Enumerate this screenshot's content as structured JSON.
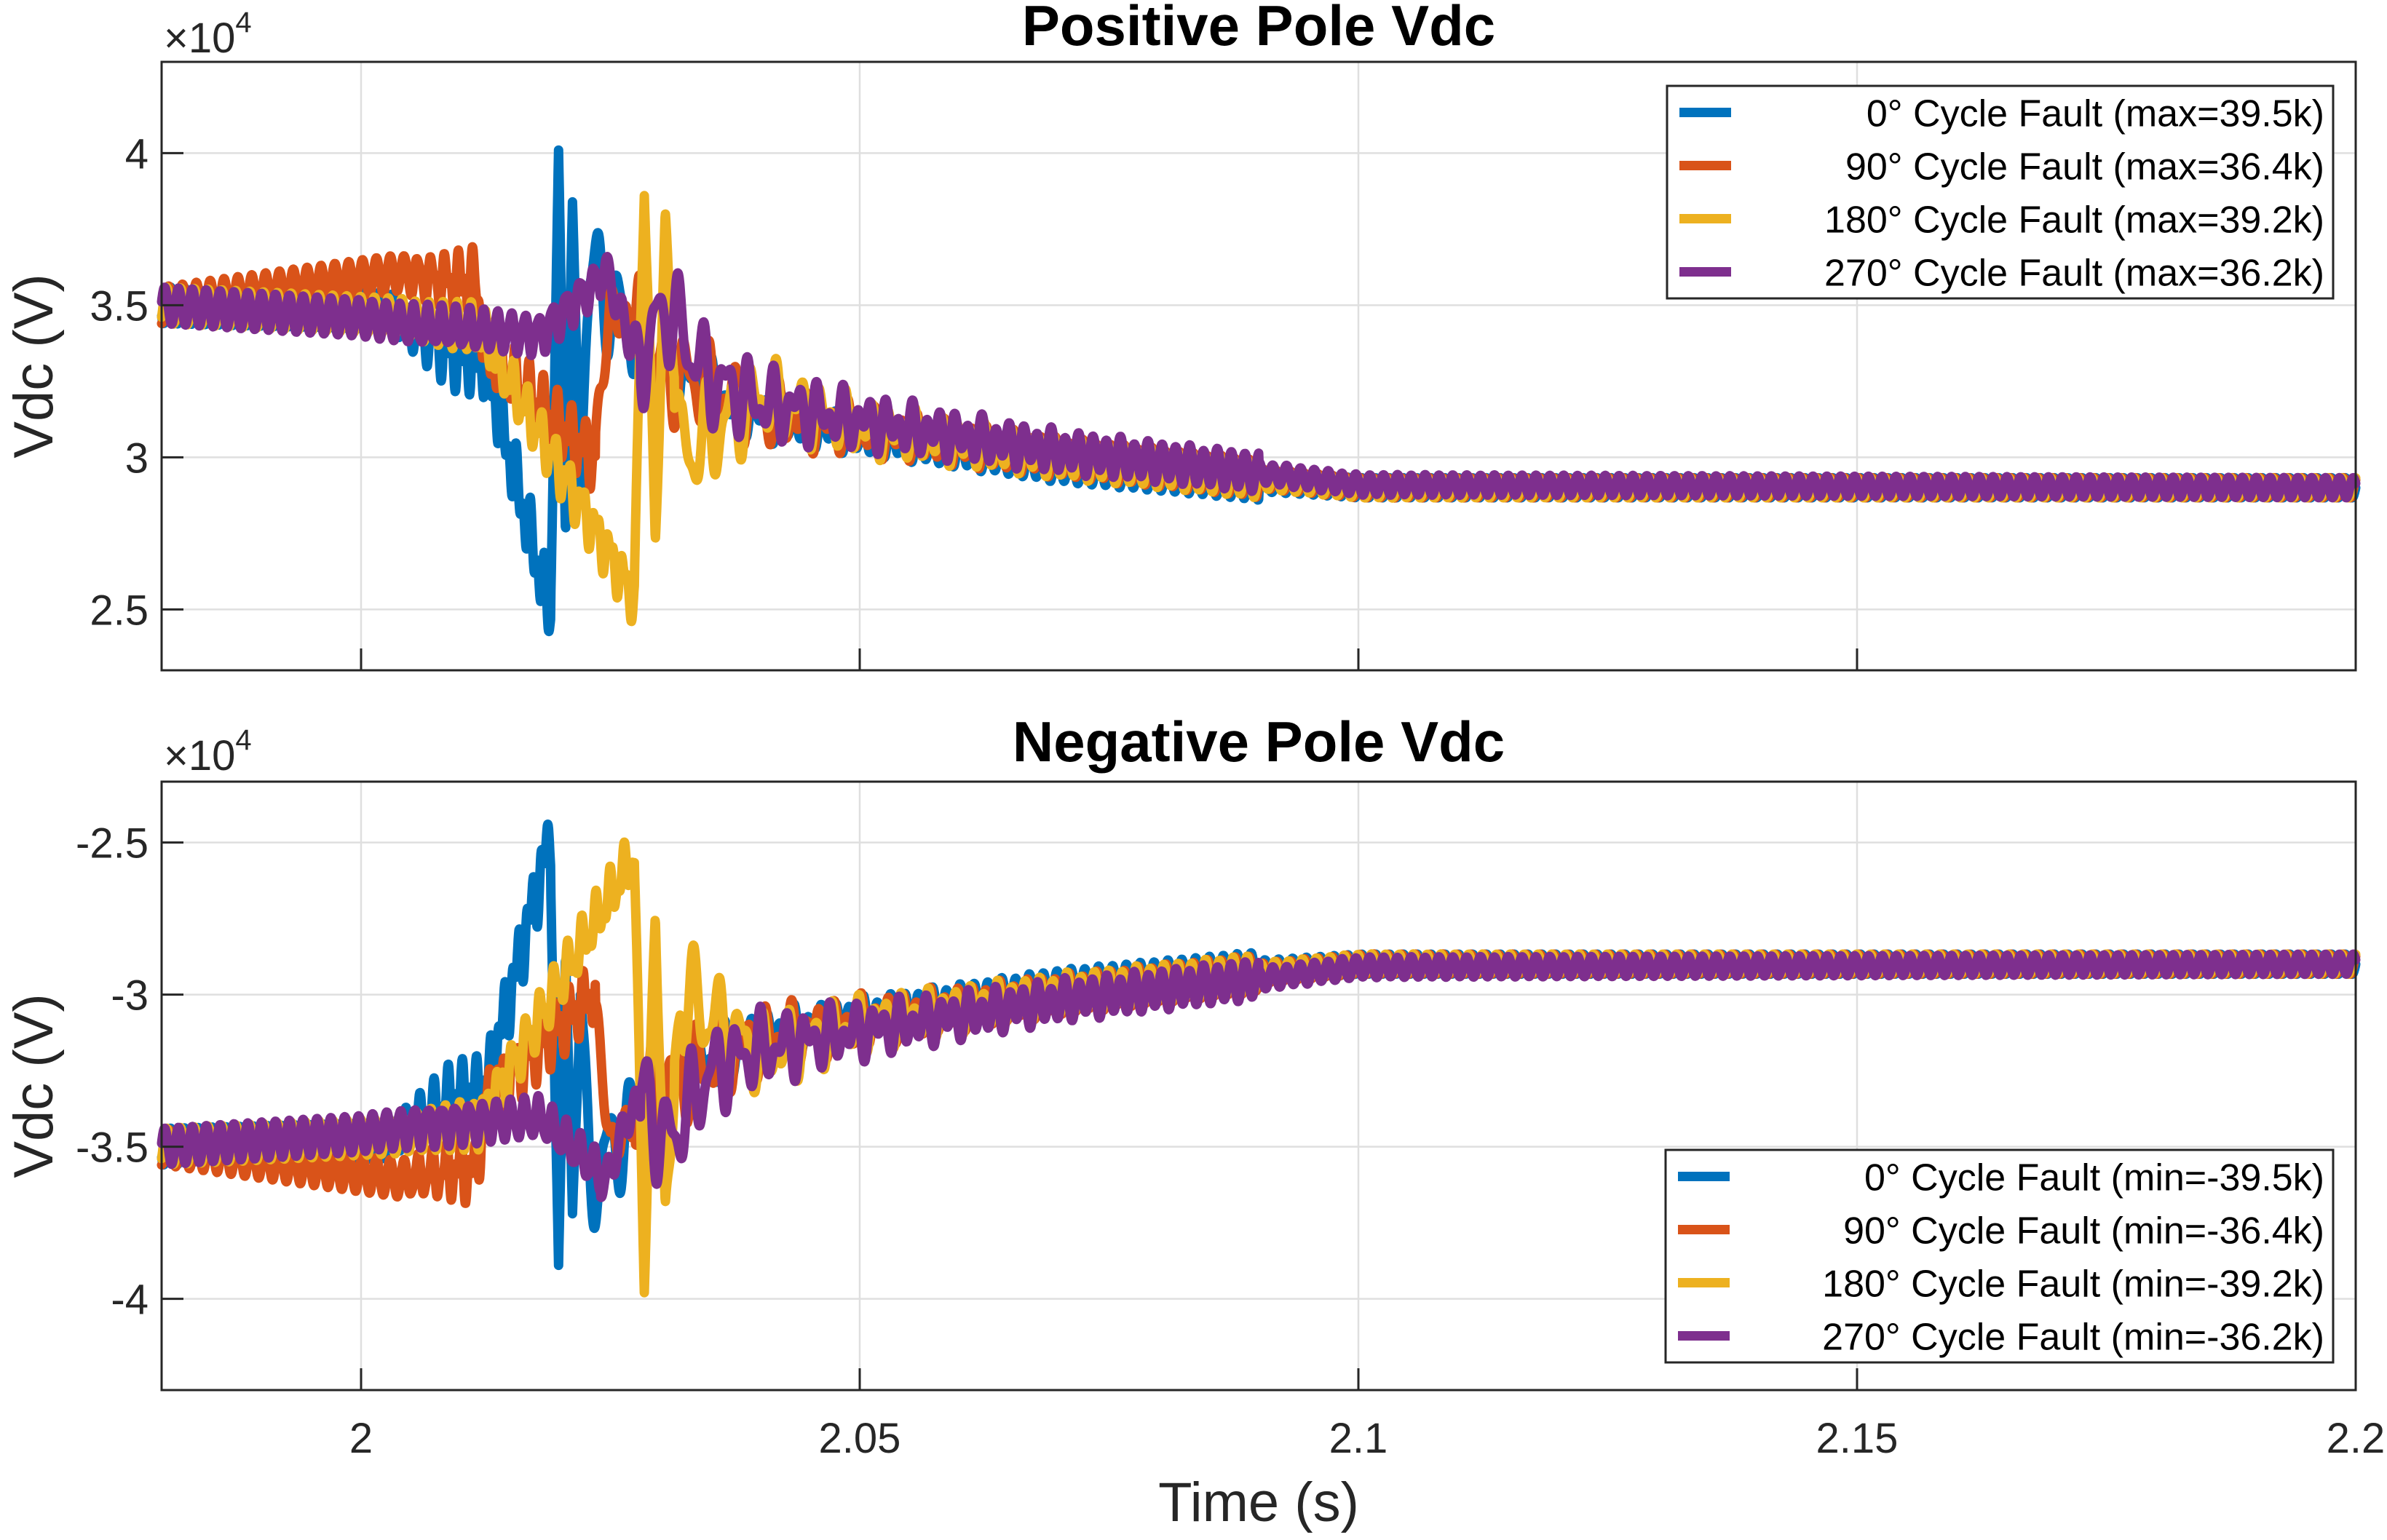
{
  "figure": {
    "xlabel": "Time (s)",
    "exponent_base": "×10",
    "exponent_power": "4"
  },
  "chart_data": [
    {
      "type": "line",
      "title": "Positive Pole Vdc",
      "xlabel": "Time (s)",
      "ylabel": "Vdc (V)",
      "y_scale_factor": 10000,
      "xlim": [
        1.98,
        2.2
      ],
      "ylim": [
        2.3,
        4.3
      ],
      "xticks": [
        2,
        2.05,
        2.1,
        2.15,
        2.2
      ],
      "xtick_labels": [
        "2",
        "2.05",
        "2.1",
        "2.15",
        "2.2"
      ],
      "yticks": [
        2.5,
        3,
        3.5,
        4
      ],
      "ytick_labels": [
        "2.5",
        "3",
        "3.5",
        "4"
      ],
      "grid": true,
      "legend_position": "top-right",
      "polarity": 1,
      "pre_fault_level": 3.5,
      "post_fault_level": 2.9,
      "ripple_amplitude": 0.06,
      "ripple_frequency_hz": 720,
      "decay_end_time": 2.1,
      "series": [
        {
          "name": "0° Cycle Fault (max=39.5k)",
          "color": "#0072BD",
          "fault_time": 2.019,
          "peak": 3.95,
          "trough": 2.55,
          "osc_period": 0.0014,
          "osc_decay": 0.004,
          "disturb_start": 2.003,
          "disturb_amp": 0.14,
          "key_points": [
            [
              1.98,
              3.5
            ],
            [
              2.003,
              3.48
            ],
            [
              2.0125,
              3.38
            ],
            [
              2.019,
              2.55
            ],
            [
              2.0198,
              3.95
            ],
            [
              2.0205,
              2.8
            ],
            [
              2.0212,
              3.78
            ],
            [
              2.022,
              2.95
            ],
            [
              2.023,
              3.6
            ],
            [
              2.03,
              3.3
            ],
            [
              2.04,
              3.14
            ],
            [
              2.05,
              3.08
            ],
            [
              2.07,
              2.98
            ],
            [
              2.09,
              2.92
            ],
            [
              2.1,
              2.9
            ],
            [
              2.2,
              2.9
            ]
          ]
        },
        {
          "name": "90° Cycle Fault (max=36.4k)",
          "color": "#D95319",
          "fault_time": 2.0235,
          "peak": 3.64,
          "trough": 3.05,
          "osc_period": 0.0014,
          "osc_decay": 0.005,
          "disturb_start": 2.004,
          "disturb_amp": 0.12,
          "key_points": [
            [
              1.98,
              3.5
            ],
            [
              2.0115,
              3.64
            ],
            [
              2.0125,
              3.4
            ],
            [
              2.0235,
              3.05
            ],
            [
              2.025,
              3.5
            ],
            [
              2.03,
              3.3
            ],
            [
              2.04,
              3.15
            ],
            [
              2.05,
              3.09
            ],
            [
              2.07,
              3.0
            ],
            [
              2.09,
              2.93
            ],
            [
              2.1,
              2.9
            ],
            [
              2.2,
              2.9
            ]
          ]
        },
        {
          "name": "180° Cycle Fault (max=39.2k)",
          "color": "#EDB120",
          "fault_time": 2.0274,
          "peak": 3.92,
          "trough": 2.58,
          "osc_period": 0.0014,
          "osc_decay": 0.005,
          "disturb_start": 2.004,
          "disturb_amp": 0.08,
          "key_points": [
            [
              1.98,
              3.5
            ],
            [
              2.012,
              3.45
            ],
            [
              2.0274,
              2.58
            ],
            [
              2.0284,
              3.92
            ],
            [
              2.0295,
              2.73
            ],
            [
              2.0305,
              3.75
            ],
            [
              2.032,
              3.0
            ],
            [
              2.04,
              3.2
            ],
            [
              2.05,
              3.1
            ],
            [
              2.07,
              3.0
            ],
            [
              2.09,
              2.93
            ],
            [
              2.1,
              2.9
            ],
            [
              2.2,
              2.9
            ]
          ]
        },
        {
          "name": "270° Cycle Fault (max=36.2k)",
          "color": "#7E2F8E",
          "fault_time": 2.024,
          "peak": 3.62,
          "trough": 3.36,
          "osc_period": 0.0014,
          "osc_decay": 0.006,
          "disturb_start": 2.0,
          "disturb_amp": 0.03,
          "key_points": [
            [
              1.98,
              3.5
            ],
            [
              2.018,
              3.42
            ],
            [
              2.0245,
              3.62
            ],
            [
              2.027,
              3.38
            ],
            [
              2.029,
              3.36
            ],
            [
              2.0305,
              3.5
            ],
            [
              2.035,
              3.25
            ],
            [
              2.04,
              3.18
            ],
            [
              2.05,
              3.12
            ],
            [
              2.07,
              3.02
            ],
            [
              2.09,
              2.95
            ],
            [
              2.1,
              2.91
            ],
            [
              2.2,
              2.9
            ]
          ]
        }
      ]
    },
    {
      "type": "line",
      "title": "Negative Pole Vdc",
      "xlabel": "Time (s)",
      "ylabel": "Vdc (V)",
      "y_scale_factor": 10000,
      "xlim": [
        1.98,
        2.2
      ],
      "ylim": [
        -4.3,
        -2.3
      ],
      "xticks": [
        2,
        2.05,
        2.1,
        2.15,
        2.2
      ],
      "xtick_labels": [
        "2",
        "2.05",
        "2.1",
        "2.15",
        "2.2"
      ],
      "yticks": [
        -4,
        -3.5,
        -3,
        -2.5
      ],
      "ytick_labels": [
        "-4",
        "-3.5",
        "-3",
        "-2.5"
      ],
      "grid": true,
      "legend_position": "bottom-right",
      "polarity": -1,
      "pre_fault_level": -3.5,
      "post_fault_level": -2.9,
      "ripple_amplitude": 0.06,
      "ripple_frequency_hz": 720,
      "decay_end_time": 2.1,
      "series": [
        {
          "name": "0° Cycle Fault (min=-39.5k)",
          "color": "#0072BD",
          "fault_time": 2.019,
          "peak": -3.95,
          "trough": -2.55,
          "osc_period": 0.0014,
          "osc_decay": 0.004,
          "disturb_start": 2.003,
          "disturb_amp": 0.14,
          "key_points": [
            [
              1.98,
              -3.5
            ],
            [
              2.003,
              -3.48
            ],
            [
              2.0125,
              -3.38
            ],
            [
              2.019,
              -2.55
            ],
            [
              2.0198,
              -3.95
            ],
            [
              2.0205,
              -2.8
            ],
            [
              2.0212,
              -3.78
            ],
            [
              2.022,
              -2.95
            ],
            [
              2.023,
              -3.6
            ],
            [
              2.03,
              -3.3
            ],
            [
              2.04,
              -3.14
            ],
            [
              2.05,
              -3.08
            ],
            [
              2.07,
              -2.98
            ],
            [
              2.09,
              -2.92
            ],
            [
              2.1,
              -2.9
            ],
            [
              2.2,
              -2.9
            ]
          ]
        },
        {
          "name": "90° Cycle Fault (min=-36.4k)",
          "color": "#D95319",
          "fault_time": 2.0235,
          "peak": -3.64,
          "trough": -3.05,
          "osc_period": 0.0014,
          "osc_decay": 0.005,
          "disturb_start": 2.004,
          "disturb_amp": 0.12,
          "key_points": [
            [
              1.98,
              -3.5
            ],
            [
              2.0115,
              -3.64
            ],
            [
              2.0125,
              -3.4
            ],
            [
              2.0235,
              -3.05
            ],
            [
              2.025,
              -3.5
            ],
            [
              2.03,
              -3.3
            ],
            [
              2.04,
              -3.15
            ],
            [
              2.05,
              -3.09
            ],
            [
              2.07,
              -3.0
            ],
            [
              2.09,
              -2.93
            ],
            [
              2.1,
              -2.9
            ],
            [
              2.2,
              -2.9
            ]
          ]
        },
        {
          "name": "180° Cycle Fault (min=-39.2k)",
          "color": "#EDB120",
          "fault_time": 2.0274,
          "peak": -3.92,
          "trough": -2.58,
          "osc_period": 0.0014,
          "osc_decay": 0.005,
          "disturb_start": 2.004,
          "disturb_amp": 0.08,
          "key_points": [
            [
              1.98,
              -3.5
            ],
            [
              2.012,
              -3.45
            ],
            [
              2.0274,
              -2.58
            ],
            [
              2.0284,
              -3.92
            ],
            [
              2.0295,
              -2.73
            ],
            [
              2.0305,
              -3.75
            ],
            [
              2.032,
              -3.0
            ],
            [
              2.04,
              -3.2
            ],
            [
              2.05,
              -3.1
            ],
            [
              2.07,
              -3.0
            ],
            [
              2.09,
              -2.93
            ],
            [
              2.1,
              -2.9
            ],
            [
              2.2,
              -2.9
            ]
          ]
        },
        {
          "name": "270° Cycle Fault (min=-36.2k)",
          "color": "#7E2F8E",
          "fault_time": 2.024,
          "peak": -3.62,
          "trough": -3.36,
          "osc_period": 0.0014,
          "osc_decay": 0.006,
          "disturb_start": 2.0,
          "disturb_amp": 0.03,
          "key_points": [
            [
              1.98,
              -3.5
            ],
            [
              2.018,
              -3.42
            ],
            [
              2.0245,
              -3.62
            ],
            [
              2.027,
              -3.38
            ],
            [
              2.029,
              -3.36
            ],
            [
              2.0305,
              -3.5
            ],
            [
              2.035,
              -3.25
            ],
            [
              2.04,
              -3.18
            ],
            [
              2.05,
              -3.12
            ],
            [
              2.07,
              -3.02
            ],
            [
              2.09,
              -2.95
            ],
            [
              2.1,
              -2.91
            ],
            [
              2.2,
              -2.9
            ]
          ]
        }
      ]
    }
  ]
}
